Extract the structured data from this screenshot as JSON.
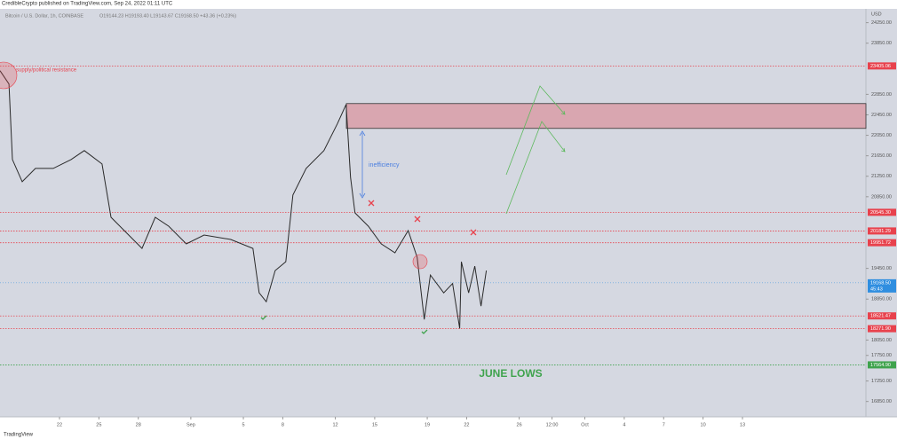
{
  "header": {
    "publisher": "CredibleCrypto published on TradingView.com, Sep 24, 2022 01:11 UTC",
    "footer": "TradingView"
  },
  "chart_data": {
    "type": "line",
    "title": "Bitcoin / U.S. Dollar, 1h, COINBASE",
    "ohlc": "O19144.23 H19193.40 L19143.67 C19168.50 +43.36 (+0.23%)",
    "y_axis_label": "USD",
    "x": [
      17.47,
      18.15,
      18.42,
      19.16,
      20.17,
      21.52,
      22.88,
      23.89,
      25.24,
      25.92,
      26.93,
      28.28,
      29.29,
      30.31,
      31.66,
      33.01,
      35.04,
      36.73,
      37.2,
      37.74,
      38.42,
      39.23,
      39.77,
      40.78,
      42.13,
      43.15,
      43.82,
      44.16,
      44.5,
      45.51,
      46.5,
      47.54,
      48.55,
      49.23,
      49.77,
      50.24,
      51.25,
      51.93,
      52.47,
      52.6,
      53.15,
      53.62,
      54.09,
      54.5
    ],
    "series": [
      {
        "name": "BTCUSD",
        "color": "#2a2a2a",
        "values": [
          23313,
          23053,
          21577,
          21143,
          21403,
          21403,
          21577,
          21751,
          21490,
          20449,
          20188,
          19841,
          20449,
          20275,
          19928,
          20101,
          20015,
          19841,
          18973,
          18799,
          19407,
          19581,
          20883,
          21403,
          21751,
          22272,
          22653,
          21230,
          20535,
          20275,
          19928,
          19754,
          20188,
          19667,
          18452,
          19320,
          18973,
          19154,
          18278,
          19581,
          18973,
          19494,
          18712,
          19407
        ]
      }
    ],
    "xlim": [
      17.47,
      83.4
    ],
    "ylim": [
      16550,
      24520
    ],
    "xticks": [
      {
        "value": 22,
        "label": "22"
      },
      {
        "value": 25,
        "label": "25"
      },
      {
        "value": 28,
        "label": "28"
      },
      {
        "value": 32,
        "label": "Sep"
      },
      {
        "value": 36,
        "label": "5"
      },
      {
        "value": 39,
        "label": "8"
      },
      {
        "value": 43,
        "label": "12"
      },
      {
        "value": 46,
        "label": "15"
      },
      {
        "value": 50,
        "label": "19"
      },
      {
        "value": 53,
        "label": "22"
      },
      {
        "value": 57,
        "label": "26"
      },
      {
        "value": 59.5,
        "label": "12:00"
      },
      {
        "value": 62,
        "label": "Oct"
      },
      {
        "value": 65,
        "label": "4"
      },
      {
        "value": 68,
        "label": "7"
      },
      {
        "value": 71,
        "label": "10"
      },
      {
        "value": 74,
        "label": "13"
      }
    ],
    "yticks": [
      {
        "value": 24250,
        "label": "24250.00"
      },
      {
        "value": 23850,
        "label": "23850.00"
      },
      {
        "value": 22850,
        "label": "22850.00"
      },
      {
        "value": 22450,
        "label": "22450.00"
      },
      {
        "value": 22050,
        "label": "22050.00"
      },
      {
        "value": 21650,
        "label": "21650.00"
      },
      {
        "value": 21250,
        "label": "21250.00"
      },
      {
        "value": 20850,
        "label": "20850.00"
      },
      {
        "value": 19450,
        "label": "19450.00"
      },
      {
        "value": 18850,
        "label": "18850.00"
      },
      {
        "value": 18050,
        "label": "18050.00"
      },
      {
        "value": 17750,
        "label": "17750.00"
      },
      {
        "value": 17250,
        "label": "17250.00"
      },
      {
        "value": 16850,
        "label": "16850.00"
      }
    ],
    "levels": [
      {
        "value": 23405.06,
        "label": "23405.06",
        "color": "#e8424d"
      },
      {
        "value": 20545.3,
        "label": "20545.30",
        "color": "#e8424d"
      },
      {
        "value": 20181.29,
        "label": "20181.29",
        "color": "#e8424d"
      },
      {
        "value": 19951.72,
        "label": "19951.72",
        "color": "#e8424d"
      },
      {
        "value": 18521.47,
        "label": "18521.47",
        "color": "#e8424d"
      },
      {
        "value": 18271.9,
        "label": "18271.90",
        "color": "#e8424d"
      },
      {
        "value": 17564.9,
        "label": "17564.90",
        "color": "#3fa34d"
      }
    ],
    "last_price": {
      "value": 19168.5,
      "label": "19168.50",
      "countdown": "45:43",
      "color": "#2f8ee0"
    },
    "zone": {
      "top": 22670,
      "bottom": 22185,
      "color": "#d9a6b0"
    },
    "annotations": {
      "resistance": "supply/political resistance",
      "inefficiency": "inefficiency",
      "june_lows": "JUNE LOWS"
    }
  }
}
